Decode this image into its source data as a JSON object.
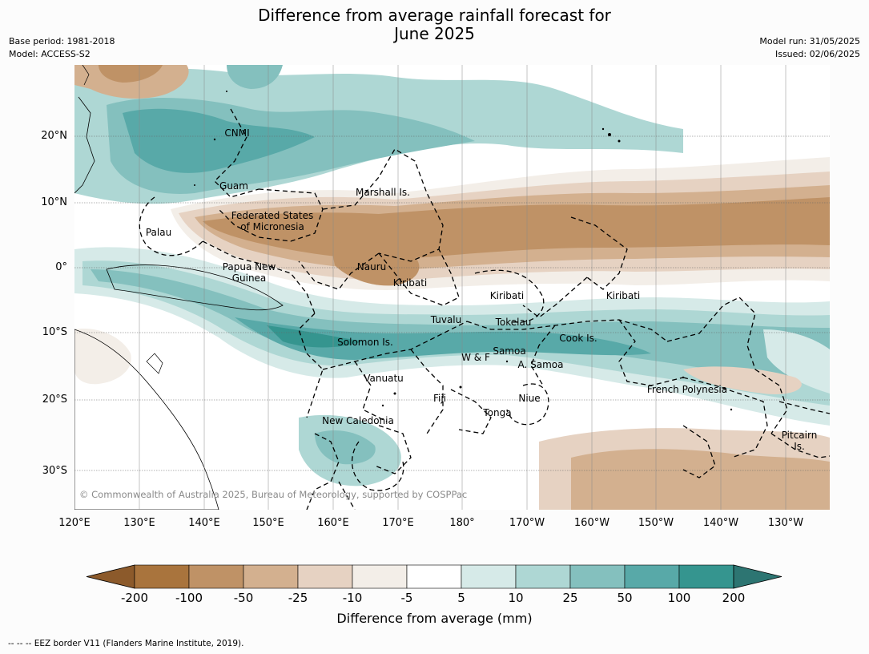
{
  "header": {
    "title_line1": "Difference from average rainfall forecast for",
    "title_line2": "June 2025",
    "base_period": "Base period: 1981-2018",
    "model": "Model: ACCESS-S2",
    "model_run": "Model run: 31/05/2025",
    "issued": "Issued: 02/06/2025"
  },
  "map": {
    "lat_labels": [
      "20°N",
      "10°N",
      "0°",
      "10°S",
      "20°S",
      "30°S"
    ],
    "lon_labels": [
      "120°E",
      "130°E",
      "140°E",
      "150°E",
      "160°E",
      "170°E",
      "180°",
      "170°W",
      "160°W",
      "150°W",
      "140°W",
      "130°W"
    ],
    "places": {
      "cnmi": "CNMI",
      "guam": "Guam",
      "marshall": "Marshall Is.",
      "fsm1": "Federated States",
      "fsm2": "of Micronesia",
      "palau": "Palau",
      "png1": "Papua New",
      "png2": "Guinea",
      "nauru": "Nauru",
      "kiribati_w": "Kiribati",
      "kiribati_c": "Kiribati",
      "kiribati_e": "Kiribati",
      "tuvalu": "Tuvalu",
      "tokelau": "Tokelau",
      "cook": "Cook Is.",
      "solomon": "Solomon Is.",
      "wf": "W & F",
      "samoa": "Samoa",
      "asamoa": "A. Samoa",
      "vanuatu": "Vanuatu",
      "fiji": "Fiji",
      "niue": "Niue",
      "tonga": "Tonga",
      "frpoly": "French Polynesia",
      "newcal": "New Caledonia",
      "pitcairn1": "Pitcairn",
      "pitcairn2": "Is."
    },
    "copyright": "© Commonwealth of Australia 2025, Bureau of Meteorology, supported by COSPPac"
  },
  "colorbar": {
    "ticks": [
      "-200",
      "-100",
      "-50",
      "-25",
      "-10",
      "-5",
      "5",
      "10",
      "25",
      "50",
      "100",
      "200"
    ],
    "colors": [
      "#8c5a2b",
      "#a9743d",
      "#bf9266",
      "#d3b08f",
      "#e6d2c2",
      "#f3eee8",
      "#ffffff",
      "#d6eae8",
      "#aed7d4",
      "#84c0be",
      "#58a9a8",
      "#35958f",
      "#2d7572"
    ],
    "title": "Difference from average (mm)"
  },
  "footnote": "--  --  -- EEZ border V11 (Flanders Marine Institute, 2019)."
}
